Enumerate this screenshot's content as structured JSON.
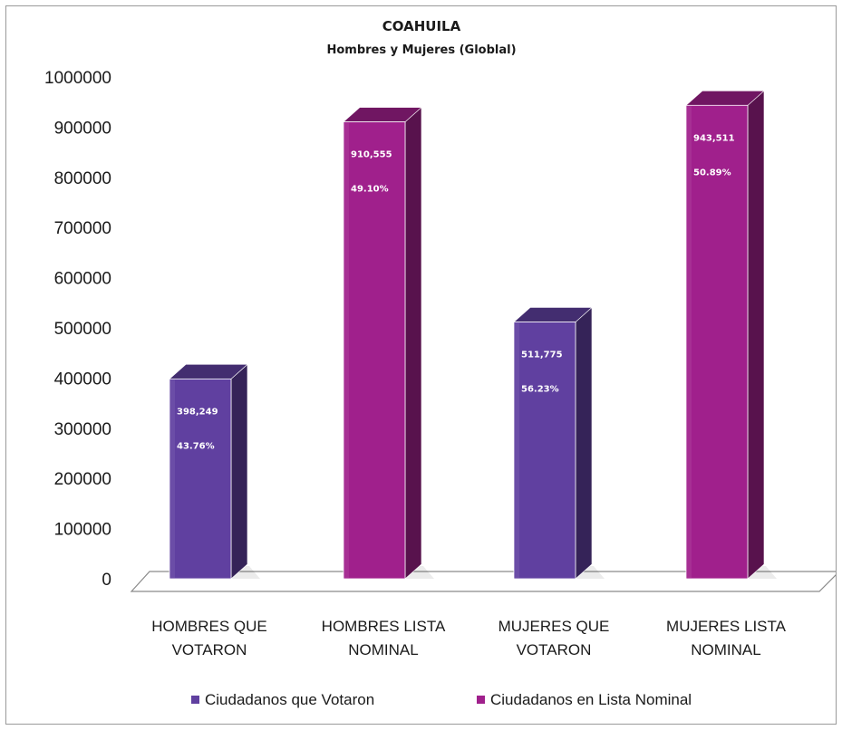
{
  "chart_data": {
    "type": "bar",
    "title": "COAHUILA",
    "subtitle": "Hombres y Mujeres (Globlal)",
    "categories": [
      "HOMBRES QUE VOTARON",
      "HOMBRES LISTA NOMINAL",
      "MUJERES QUE VOTARON",
      "MUJERES LISTA NOMINAL"
    ],
    "category_lines": [
      [
        "HOMBRES QUE",
        "VOTARON"
      ],
      [
        "HOMBRES LISTA",
        "NOMINAL"
      ],
      [
        "MUJERES QUE",
        "VOTARON"
      ],
      [
        "MUJERES LISTA",
        "NOMINAL"
      ]
    ],
    "values": [
      398249,
      910555,
      511775,
      943511
    ],
    "value_labels": [
      "398,249",
      "910,555",
      "511,775",
      "943,511"
    ],
    "percent_labels": [
      "43.76%",
      "49.10%",
      "56.23%",
      "50.89%"
    ],
    "series_index": [
      0,
      1,
      0,
      1
    ],
    "series": [
      {
        "name": "Ciudadanos que Votaron",
        "color": "#6040a0"
      },
      {
        "name": "Ciudadanos en Lista Nominal",
        "color": "#a0208c"
      }
    ],
    "ylim": [
      0,
      1000000
    ],
    "yticks": [
      "0",
      "100000",
      "200000",
      "300000",
      "400000",
      "500000",
      "600000",
      "700000",
      "800000",
      "900000",
      "1000000"
    ],
    "legend_position": "bottom",
    "three_d": true,
    "grid": false
  }
}
